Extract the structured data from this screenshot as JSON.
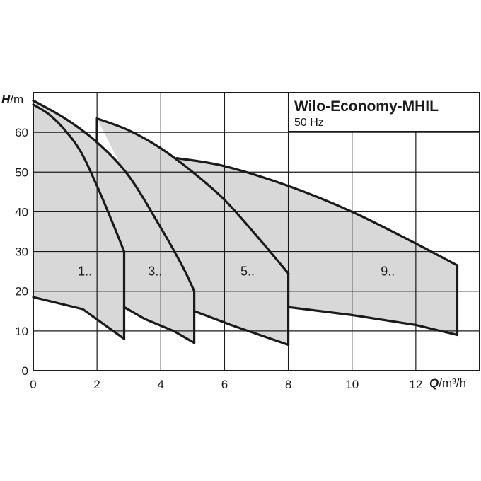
{
  "chart_data": {
    "type": "area",
    "title": "Wilo-Economy-MHIL",
    "subtitle": "50 Hz",
    "ylabel_sym": "H",
    "ylabel_unit": "/m",
    "xlabel_sym": "Q",
    "xlabel_unit": "/m³/h",
    "xlim": [
      0,
      14
    ],
    "ylim": [
      0,
      70
    ],
    "xticks": [
      0,
      2,
      4,
      6,
      8,
      10,
      12
    ],
    "yticks": [
      0,
      10,
      20,
      30,
      40,
      50,
      60
    ],
    "xgrid": [
      0,
      2,
      4,
      6,
      8,
      10,
      12,
      14
    ],
    "ygrid": [
      0,
      10,
      20,
      30,
      40,
      50,
      60,
      70
    ],
    "grid": true,
    "ranges": [
      {
        "name": "1..",
        "label_pos": [
          1.4,
          25
        ],
        "max_curve": [
          [
            0,
            67
          ],
          [
            0.5,
            64.5
          ],
          [
            1,
            60.5
          ],
          [
            1.5,
            55
          ],
          [
            2,
            46.5
          ],
          [
            2.5,
            37
          ],
          [
            2.85,
            30
          ]
        ],
        "min_curve": [
          [
            0,
            18.5
          ],
          [
            1.55,
            15.5
          ],
          [
            2.85,
            8
          ]
        ],
        "divider": null
      },
      {
        "name": "3..",
        "label_pos": [
          3.6,
          25
        ],
        "max_curve": [
          [
            0,
            68
          ],
          [
            1,
            63.5
          ],
          [
            2,
            57.5
          ],
          [
            3,
            49
          ],
          [
            4,
            36
          ],
          [
            4.7,
            26
          ],
          [
            5.05,
            20
          ]
        ],
        "min_curve": [
          [
            2.85,
            16
          ],
          [
            3.5,
            13
          ],
          [
            4.4,
            10
          ],
          [
            5.05,
            7
          ]
        ],
        "divider": null
      },
      {
        "name": "5..",
        "label_pos": [
          6.5,
          25
        ],
        "max_curve": [
          [
            2,
            63.5
          ],
          [
            3,
            60.5
          ],
          [
            4,
            56
          ],
          [
            5,
            50
          ],
          [
            6,
            43
          ],
          [
            7,
            34
          ],
          [
            8,
            24.5
          ]
        ],
        "min_curve": [
          [
            5.05,
            15
          ],
          [
            6.2,
            11.5
          ],
          [
            8,
            6.5
          ]
        ],
        "divider": [
          [
            2,
            63.5
          ],
          [
            2,
            57.5
          ]
        ]
      },
      {
        "name": "9..",
        "label_pos": [
          10.9,
          25
        ],
        "max_curve": [
          [
            4.5,
            53.5
          ],
          [
            6,
            51.5
          ],
          [
            8,
            46.5
          ],
          [
            10,
            40
          ],
          [
            12,
            32
          ],
          [
            13.3,
            26.5
          ]
        ],
        "min_curve": [
          [
            8,
            16
          ],
          [
            10,
            14
          ],
          [
            12,
            11.5
          ],
          [
            13.3,
            9
          ]
        ],
        "divider": null
      }
    ]
  }
}
